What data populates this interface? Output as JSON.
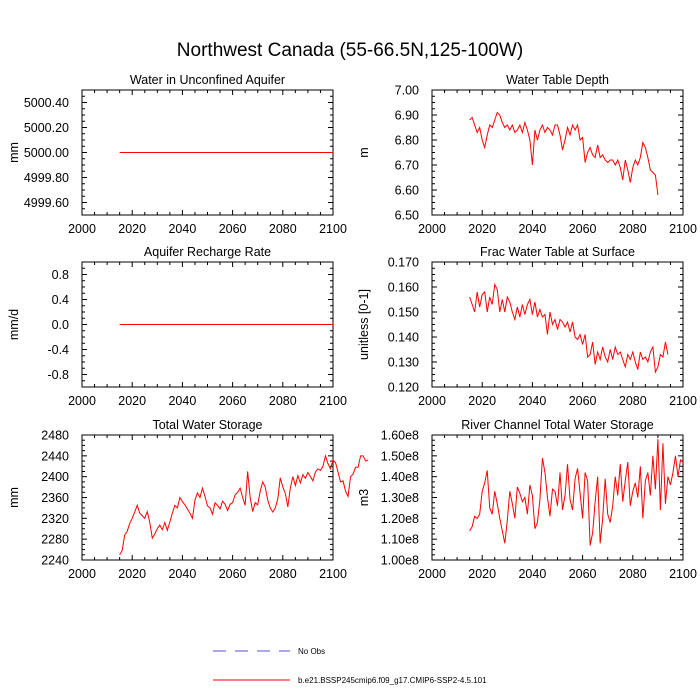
{
  "figure_title": "Northwest Canada (55-66.5N,125-100W)",
  "legend": {
    "items": [
      {
        "label": "No Obs",
        "color": "#5a4fcf",
        "style": "dashed"
      },
      {
        "label": "b.e21.BSSP245cmip6.f09_g17.CMIP6-SSP2-4.5.101",
        "color": "#ff0000",
        "style": "solid"
      }
    ]
  },
  "chart_data": [
    {
      "type": "line",
      "title": "Water in Unconfined Aquifer",
      "ylabel": "mm",
      "xlim": [
        2000,
        2100
      ],
      "ylim": [
        4999.5,
        5000.5
      ],
      "xticks": [
        2000,
        2020,
        2040,
        2060,
        2080,
        2100
      ],
      "xtick_labels": [
        "2000",
        "2020",
        "2040",
        "2060",
        "2080",
        "2100"
      ],
      "yticks": [
        4999.6,
        4999.8,
        5000.0,
        5000.2,
        5000.4
      ],
      "ytick_labels": [
        "4999.60",
        "4999.80",
        "5000.00",
        "5000.20",
        "5000.40"
      ],
      "series": [
        {
          "name": "b.e21.BSSP245cmip6.f09_g17.CMIP6-SSP2-4.5.101",
          "color": "#ff0000",
          "x": [
            2015,
            2100
          ],
          "values": [
            5000.0,
            5000.0
          ]
        }
      ]
    },
    {
      "type": "line",
      "title": "Water Table Depth",
      "ylabel": "m",
      "xlim": [
        2000,
        2100
      ],
      "ylim": [
        6.5,
        7.0
      ],
      "xticks": [
        2000,
        2020,
        2040,
        2060,
        2080,
        2100
      ],
      "xtick_labels": [
        "2000",
        "2020",
        "2040",
        "2060",
        "2080",
        "2100"
      ],
      "yticks": [
        6.5,
        6.6,
        6.7,
        6.8,
        6.9,
        7.0
      ],
      "ytick_labels": [
        "6.50",
        "6.60",
        "6.70",
        "6.80",
        "6.90",
        "7.00"
      ],
      "series": [
        {
          "name": "b.e21.BSSP245cmip6.f09_g17.CMIP6-SSP2-4.5.101",
          "color": "#ff0000",
          "x0": 2015,
          "values": [
            6.88,
            6.89,
            6.86,
            6.83,
            6.85,
            6.8,
            6.77,
            6.82,
            6.86,
            6.85,
            6.88,
            6.91,
            6.9,
            6.87,
            6.85,
            6.86,
            6.84,
            6.86,
            6.83,
            6.84,
            6.86,
            6.83,
            6.87,
            6.84,
            6.8,
            6.7,
            6.84,
            6.8,
            6.84,
            6.86,
            6.83,
            6.85,
            6.84,
            6.82,
            6.86,
            6.86,
            6.82,
            6.76,
            6.8,
            6.85,
            6.82,
            6.86,
            6.84,
            6.86,
            6.8,
            6.81,
            6.71,
            6.75,
            6.77,
            6.74,
            6.73,
            6.78,
            6.73,
            6.74,
            6.72,
            6.71,
            6.72,
            6.72,
            6.7,
            6.72,
            6.69,
            6.64,
            6.72,
            6.68,
            6.63,
            6.69,
            6.72,
            6.7,
            6.73,
            6.79,
            6.77,
            6.73,
            6.68,
            6.67,
            6.66,
            6.58
          ]
        }
      ]
    },
    {
      "type": "line",
      "title": "Aquifer Recharge Rate",
      "ylabel": "mm/d",
      "xlim": [
        2000,
        2100
      ],
      "ylim": [
        -1.0,
        1.0
      ],
      "xticks": [
        2000,
        2020,
        2040,
        2060,
        2080,
        2100
      ],
      "xtick_labels": [
        "2000",
        "2020",
        "2040",
        "2060",
        "2080",
        "2100"
      ],
      "yticks": [
        -0.8,
        -0.4,
        0.0,
        0.4,
        0.8
      ],
      "ytick_labels": [
        "-0.8",
        "-0.4",
        "0.0",
        "0.4",
        "0.8"
      ],
      "series": [
        {
          "name": "b.e21.BSSP245cmip6.f09_g17.CMIP6-SSP2-4.5.101",
          "color": "#ff0000",
          "x": [
            2015,
            2100
          ],
          "values": [
            0.0,
            0.0
          ]
        }
      ]
    },
    {
      "type": "line",
      "title": "Frac Water Table at Surface",
      "ylabel": "unitless [0-1]",
      "xlim": [
        2000,
        2100
      ],
      "ylim": [
        0.12,
        0.17
      ],
      "xticks": [
        2000,
        2020,
        2040,
        2060,
        2080,
        2100
      ],
      "xtick_labels": [
        "2000",
        "2020",
        "2040",
        "2060",
        "2080",
        "2100"
      ],
      "yticks": [
        0.12,
        0.13,
        0.14,
        0.15,
        0.16,
        0.17
      ],
      "ytick_labels": [
        "0.120",
        "0.130",
        "0.140",
        "0.150",
        "0.160",
        "0.170"
      ],
      "series": [
        {
          "name": "b.e21.BSSP245cmip6.f09_g17.CMIP6-SSP2-4.5.101",
          "color": "#ff0000",
          "x0": 2015,
          "values": [
            0.156,
            0.153,
            0.15,
            0.158,
            0.152,
            0.157,
            0.158,
            0.15,
            0.156,
            0.153,
            0.161,
            0.159,
            0.15,
            0.155,
            0.15,
            0.156,
            0.154,
            0.15,
            0.147,
            0.152,
            0.148,
            0.153,
            0.149,
            0.153,
            0.155,
            0.149,
            0.154,
            0.148,
            0.151,
            0.148,
            0.149,
            0.141,
            0.15,
            0.145,
            0.147,
            0.143,
            0.147,
            0.146,
            0.144,
            0.146,
            0.142,
            0.146,
            0.14,
            0.139,
            0.141,
            0.137,
            0.141,
            0.132,
            0.133,
            0.138,
            0.129,
            0.134,
            0.131,
            0.136,
            0.132,
            0.13,
            0.135,
            0.131,
            0.136,
            0.133,
            0.134,
            0.131,
            0.128,
            0.133,
            0.131,
            0.134,
            0.13,
            0.127,
            0.134,
            0.131,
            0.132,
            0.13,
            0.134,
            0.136,
            0.126,
            0.128,
            0.133,
            0.132,
            0.138,
            0.133
          ]
        }
      ]
    },
    {
      "type": "line",
      "title": "Total Water Storage",
      "ylabel": "mm",
      "xlim": [
        2000,
        2100
      ],
      "ylim": [
        2240,
        2480
      ],
      "xticks": [
        2000,
        2020,
        2040,
        2060,
        2080,
        2100
      ],
      "xtick_labels": [
        "2000",
        "2020",
        "2040",
        "2060",
        "2080",
        "2100"
      ],
      "yticks": [
        2240,
        2280,
        2320,
        2360,
        2400,
        2440,
        2480
      ],
      "ytick_labels": [
        "2240",
        "2280",
        "2320",
        "2360",
        "2400",
        "2440",
        "2480"
      ],
      "series": [
        {
          "name": "b.e21.BSSP245cmip6.f09_g17.CMIP6-SSP2-4.5.101",
          "color": "#ff0000",
          "x0": 2015,
          "values": [
            2250,
            2258,
            2288,
            2295,
            2310,
            2320,
            2332,
            2345,
            2330,
            2325,
            2320,
            2333,
            2312,
            2282,
            2290,
            2300,
            2307,
            2298,
            2312,
            2297,
            2313,
            2330,
            2345,
            2340,
            2360,
            2352,
            2346,
            2338,
            2330,
            2320,
            2355,
            2369,
            2360,
            2378,
            2362,
            2344,
            2340,
            2328,
            2350,
            2345,
            2338,
            2353,
            2347,
            2335,
            2347,
            2350,
            2365,
            2370,
            2378,
            2360,
            2345,
            2410,
            2360,
            2333,
            2350,
            2346,
            2372,
            2390,
            2380,
            2355,
            2340,
            2332,
            2340,
            2357,
            2398,
            2380,
            2368,
            2342,
            2378,
            2400,
            2383,
            2402,
            2388,
            2404,
            2397,
            2408,
            2400,
            2392,
            2409,
            2415,
            2412,
            2420,
            2440,
            2425,
            2415,
            2432,
            2427,
            2409,
            2390,
            2392,
            2372,
            2362,
            2400,
            2405,
            2418,
            2418,
            2440,
            2440,
            2430,
            2432
          ]
        }
      ]
    },
    {
      "type": "line",
      "title": "River Channel Total Water Storage",
      "ylabel": "m3",
      "xlim": [
        2000,
        2100
      ],
      "ylim": [
        100000000,
        160000000
      ],
      "xticks": [
        2000,
        2020,
        2040,
        2060,
        2080,
        2100
      ],
      "xtick_labels": [
        "2000",
        "2020",
        "2040",
        "2060",
        "2080",
        "2100"
      ],
      "yticks": [
        100000000,
        110000000,
        120000000,
        130000000,
        140000000,
        150000000,
        160000000
      ],
      "ytick_labels": [
        "1.00e8",
        "1.10e8",
        "1.20e8",
        "1.30e8",
        "1.40e8",
        "1.50e8",
        "1.60e8"
      ],
      "series": [
        {
          "name": "b.e21.BSSP245cmip6.f09_g17.CMIP6-SSP2-4.5.101",
          "color": "#ff0000",
          "x0": 2015,
          "values": [
            114000000,
            116000000,
            121000000,
            120000000,
            122000000,
            133000000,
            137000000,
            143000000,
            125000000,
            122000000,
            133000000,
            127000000,
            120000000,
            114000000,
            108000000,
            119000000,
            133000000,
            127000000,
            120000000,
            135000000,
            132000000,
            128000000,
            130000000,
            122000000,
            136000000,
            131000000,
            115000000,
            118000000,
            129000000,
            149000000,
            142000000,
            130000000,
            121000000,
            134000000,
            133000000,
            126000000,
            142000000,
            124000000,
            131000000,
            146000000,
            129000000,
            124000000,
            139000000,
            144000000,
            132000000,
            120000000,
            142000000,
            138000000,
            107000000,
            113000000,
            128000000,
            140000000,
            108000000,
            120000000,
            139000000,
            122000000,
            118000000,
            126000000,
            140000000,
            131000000,
            146000000,
            128000000,
            138000000,
            147000000,
            126000000,
            133000000,
            137000000,
            130000000,
            145000000,
            120000000,
            138000000,
            142000000,
            131000000,
            150000000,
            134000000,
            158000000,
            124000000,
            156000000,
            127000000,
            140000000,
            136000000,
            142000000,
            150000000,
            140000000,
            148000000,
            147000000
          ]
        }
      ]
    }
  ]
}
